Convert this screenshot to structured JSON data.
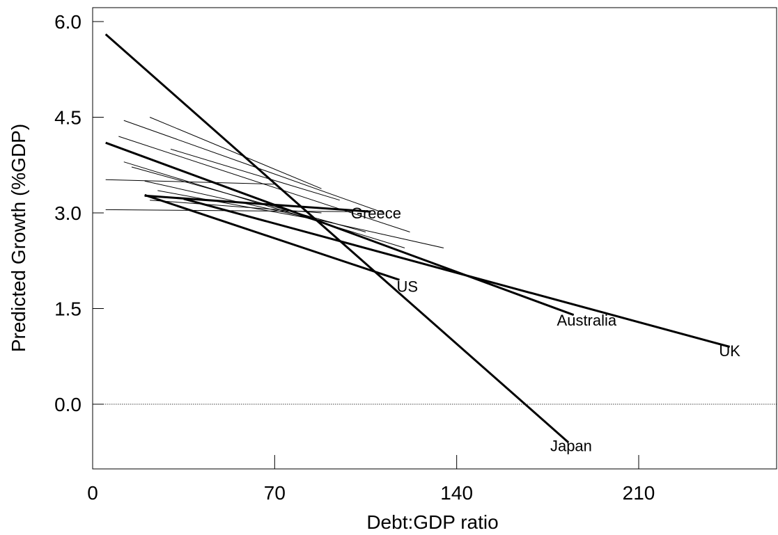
{
  "chart_data": {
    "type": "line",
    "title": "",
    "xlabel": "Debt:GDP ratio",
    "ylabel": "Predicted Growth (%GDP)",
    "xlim": [
      0,
      262
    ],
    "ylim": [
      -1.0,
      6.2
    ],
    "xticks": [
      0,
      70,
      140,
      210
    ],
    "xtick_labels": [
      "0",
      "70",
      "140",
      "210"
    ],
    "yticks": [
      0.0,
      1.5,
      3.0,
      4.5,
      6.0
    ],
    "ytick_labels": [
      "0.0",
      "1.5",
      "3.0",
      "4.5",
      "6.0"
    ],
    "reference_line": {
      "y": 0.0,
      "style": "dotted"
    },
    "grid": false,
    "series": [
      {
        "name": "Japan",
        "labeled": true,
        "x": [
          5,
          183
        ],
        "y": [
          5.8,
          -0.6
        ]
      },
      {
        "name": "UK",
        "labeled": true,
        "x": [
          35,
          245
        ],
        "y": [
          3.22,
          0.9
        ]
      },
      {
        "name": "Australia",
        "labeled": true,
        "x": [
          5,
          185
        ],
        "y": [
          4.1,
          1.4
        ]
      },
      {
        "name": "US",
        "labeled": true,
        "x": [
          20,
          118
        ],
        "y": [
          3.28,
          1.95
        ]
      },
      {
        "name": "Greece",
        "labeled": true,
        "x": [
          20,
          107
        ],
        "y": [
          3.27,
          3.02
        ]
      },
      {
        "name": "",
        "labeled": false,
        "x": [
          5,
          100
        ],
        "y": [
          3.05,
          3.02
        ]
      },
      {
        "name": "",
        "labeled": false,
        "x": [
          12,
          120
        ],
        "y": [
          3.8,
          2.45
        ]
      },
      {
        "name": "",
        "labeled": false,
        "x": [
          20,
          135
        ],
        "y": [
          3.5,
          2.45
        ]
      },
      {
        "name": "",
        "labeled": false,
        "x": [
          12,
          112
        ],
        "y": [
          4.45,
          3.0
        ]
      },
      {
        "name": "",
        "labeled": false,
        "x": [
          22,
          88
        ],
        "y": [
          4.5,
          3.38
        ]
      },
      {
        "name": "",
        "labeled": false,
        "x": [
          10,
          122
        ],
        "y": [
          4.2,
          2.7
        ]
      },
      {
        "name": "",
        "labeled": false,
        "x": [
          30,
          95
        ],
        "y": [
          4.0,
          3.2
        ]
      },
      {
        "name": "",
        "labeled": false,
        "x": [
          5,
          70
        ],
        "y": [
          3.52,
          3.45
        ]
      },
      {
        "name": "",
        "labeled": false,
        "x": [
          22,
          88
        ],
        "y": [
          3.2,
          3.0
        ]
      },
      {
        "name": "",
        "labeled": false,
        "x": [
          15,
          105
        ],
        "y": [
          3.72,
          2.7
        ]
      },
      {
        "name": "",
        "labeled": false,
        "x": [
          25,
          92
        ],
        "y": [
          3.35,
          2.85
        ]
      }
    ],
    "labels": [
      {
        "text": "Greece",
        "x": 109,
        "y": 3.0
      },
      {
        "text": "US",
        "x": 121,
        "y": 1.85
      },
      {
        "text": "Australia",
        "x": 190,
        "y": 1.32
      },
      {
        "text": "UK",
        "x": 245,
        "y": 0.84
      },
      {
        "text": "Japan",
        "x": 184,
        "y": -0.65
      }
    ]
  }
}
